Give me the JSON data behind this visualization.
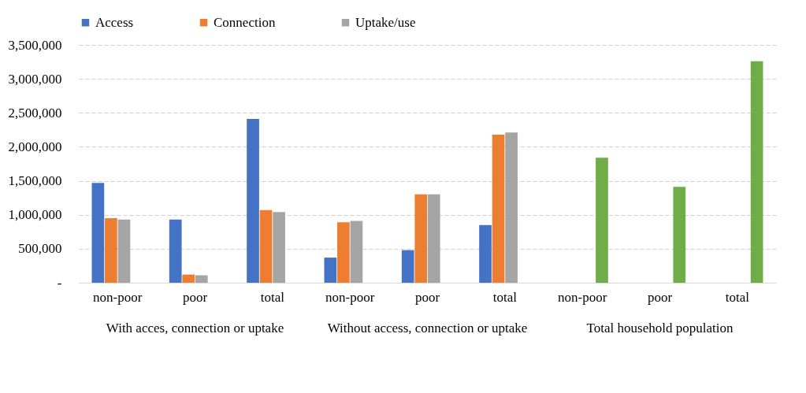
{
  "chart_data": {
    "type": "bar",
    "categories": [
      "non-poor",
      "poor",
      "total",
      "non-poor",
      "poor",
      "total",
      "non-poor",
      "poor",
      "total"
    ],
    "series": [
      {
        "name": "Access",
        "color": "#4472c4",
        "values": [
          1470000,
          930000,
          2410000,
          370000,
          480000,
          850000,
          null,
          null,
          null
        ]
      },
      {
        "name": "Connection",
        "color": "#ed7d31",
        "values": [
          950000,
          120000,
          1070000,
          890000,
          1300000,
          2180000,
          null,
          null,
          null
        ]
      },
      {
        "name": "Uptake/use",
        "color": "#a5a5a5",
        "values": [
          930000,
          110000,
          1040000,
          910000,
          1300000,
          2210000,
          null,
          null,
          null
        ]
      },
      {
        "color": "#70ad47",
        "values": [
          null,
          null,
          null,
          null,
          null,
          null,
          1840000,
          1410000,
          3260000
        ]
      }
    ],
    "annotations": [
      "With acces, connection or uptake",
      "Without access, connection or uptake",
      "Total household population"
    ],
    "ylim": [
      0,
      3500000
    ],
    "yticks": [
      {
        "value": 0,
        "label": "-"
      },
      {
        "value": 500000,
        "label": "500,000"
      },
      {
        "value": 1000000,
        "label": "1,000,000"
      },
      {
        "value": 1500000,
        "label": "1,500,000"
      },
      {
        "value": 2000000,
        "label": "2,000,000"
      },
      {
        "value": 2500000,
        "label": "2,500,000"
      },
      {
        "value": 3000000,
        "label": "3,000,000"
      },
      {
        "value": 3500000,
        "label": "3,500,000"
      }
    ],
    "grid": "y",
    "legend": "top"
  }
}
